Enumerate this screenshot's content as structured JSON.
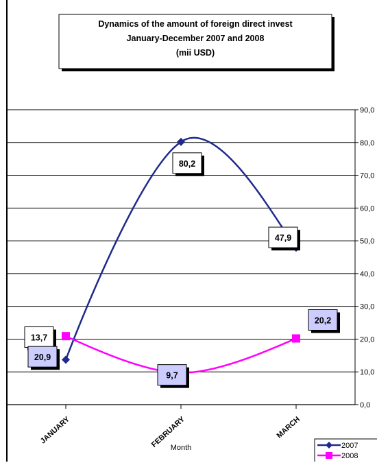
{
  "chart_data": {
    "type": "line",
    "title_lines": [
      "Dynamics of the amount of foreign direct invest",
      "January-December 2007 and  2008",
      "(mii USD)"
    ],
    "xlabel": "Month",
    "ylabel": "",
    "categories": [
      "JANUARY",
      "FEBRUARY",
      "MARCH"
    ],
    "ylim": [
      0,
      90
    ],
    "yticks": [
      "0,0",
      "10,0",
      "20,0",
      "30,0",
      "40,0",
      "50,0",
      "60,0",
      "70,0",
      "80,0",
      "90,0"
    ],
    "yaxis_position": "right",
    "grid": "horizontal",
    "legend_position": "bottom-right",
    "series": [
      {
        "name": "2007",
        "values": [
          13.7,
          80.2,
          47.9
        ],
        "labels": [
          "13,7",
          "80,2",
          "47,9"
        ],
        "color": "#1f2a8c",
        "marker": "diamond",
        "smooth": true
      },
      {
        "name": "2008",
        "values": [
          20.9,
          9.7,
          20.2
        ],
        "labels": [
          "20,9",
          "9,7",
          "20,2"
        ],
        "color": "#ff00ff",
        "marker": "square",
        "smooth": true
      }
    ]
  }
}
